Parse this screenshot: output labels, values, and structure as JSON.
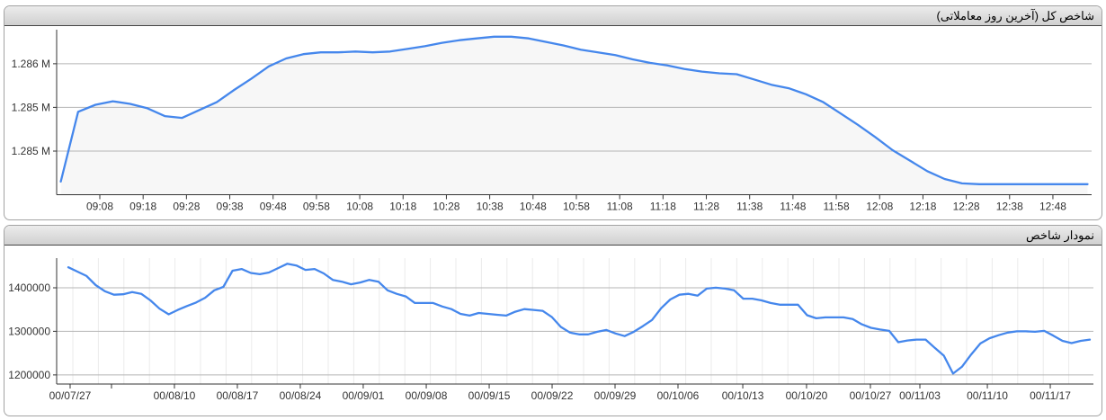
{
  "panels": {
    "intraday": {
      "title": "شاخص کل (آخرین روز معاملاتی)"
    },
    "history": {
      "title": "نمودار شاخص"
    }
  },
  "colors": {
    "line": "#4587ec",
    "area_fill": "#f7f7f7",
    "grid": "#b5b5b5",
    "minor_grid": "#ebebeb",
    "axis": "#333333",
    "tick_label": "#333333",
    "header_border": "#454545"
  },
  "chart_data": [
    {
      "id": "intraday",
      "type": "area",
      "title": "شاخص کل (آخرین روز معاملاتی)",
      "x": [
        "08:59",
        "09:03",
        "09:07",
        "09:11",
        "09:15",
        "09:19",
        "09:23",
        "09:27",
        "09:31",
        "09:35",
        "09:39",
        "09:43",
        "09:47",
        "09:51",
        "09:55",
        "09:59",
        "10:03",
        "10:07",
        "10:11",
        "10:15",
        "10:19",
        "10:23",
        "10:27",
        "10:31",
        "10:35",
        "10:39",
        "10:43",
        "10:47",
        "10:51",
        "10:55",
        "10:59",
        "11:03",
        "11:07",
        "11:11",
        "11:15",
        "11:19",
        "11:23",
        "11:27",
        "11:31",
        "11:35",
        "11:39",
        "11:43",
        "11:47",
        "11:51",
        "11:55",
        "11:59",
        "12:03",
        "12:07",
        "12:11",
        "12:15",
        "12:19",
        "12:23",
        "12:27",
        "12:31",
        "12:35",
        "12:39",
        "12:43",
        "12:47",
        "12:51",
        "12:56"
      ],
      "values": [
        1284650,
        1285450,
        1285530,
        1285570,
        1285540,
        1285490,
        1285400,
        1285380,
        1285470,
        1285560,
        1285700,
        1285830,
        1285970,
        1286060,
        1286110,
        1286130,
        1286130,
        1286140,
        1286130,
        1286140,
        1286170,
        1286200,
        1286240,
        1286270,
        1286290,
        1286310,
        1286310,
        1286290,
        1286250,
        1286210,
        1286160,
        1286130,
        1286100,
        1286050,
        1286010,
        1285980,
        1285940,
        1285910,
        1285890,
        1285880,
        1285820,
        1285760,
        1285720,
        1285650,
        1285560,
        1285430,
        1285300,
        1285160,
        1285010,
        1284890,
        1284770,
        1284680,
        1284630,
        1284620,
        1284620,
        1284620,
        1284620,
        1284620,
        1284620,
        1284620
      ],
      "x_tick_labels": [
        "09:08",
        "09:18",
        "09:28",
        "09:38",
        "09:48",
        "09:58",
        "10:08",
        "10:18",
        "10:28",
        "10:38",
        "10:48",
        "10:58",
        "11:08",
        "11:18",
        "11:28",
        "11:38",
        "11:48",
        "11:58",
        "12:08",
        "12:18",
        "12:28",
        "12:38",
        "12:48"
      ],
      "y_tick_labels": [
        "1.286 M",
        "1.285 M",
        "1.285 M"
      ],
      "y_tick_values": [
        1286000,
        1285500,
        1285000
      ],
      "ylim": [
        1284500,
        1286390
      ],
      "grid": "horizontal",
      "legend": "none"
    },
    {
      "id": "history",
      "type": "line",
      "title": "نمودار شاخص",
      "values": [
        1447000,
        1437000,
        1427000,
        1406000,
        1392000,
        1384000,
        1385000,
        1390000,
        1386000,
        1371000,
        1352000,
        1339000,
        1349000,
        1358000,
        1366000,
        1377000,
        1394000,
        1402000,
        1439000,
        1443000,
        1434000,
        1431000,
        1435000,
        1445000,
        1455000,
        1451000,
        1441000,
        1443000,
        1433000,
        1418000,
        1414000,
        1408000,
        1412000,
        1418000,
        1414000,
        1394000,
        1386000,
        1380000,
        1365000,
        1365000,
        1365000,
        1357000,
        1351000,
        1340000,
        1336000,
        1342000,
        1340000,
        1338000,
        1336000,
        1345000,
        1351000,
        1349000,
        1347000,
        1333000,
        1310000,
        1297000,
        1293000,
        1293000,
        1299000,
        1303000,
        1295000,
        1289000,
        1299000,
        1312000,
        1326000,
        1353000,
        1373000,
        1384000,
        1386000,
        1382000,
        1398000,
        1400000,
        1398000,
        1394000,
        1375000,
        1375000,
        1371000,
        1365000,
        1361000,
        1361000,
        1361000,
        1337000,
        1330000,
        1332000,
        1332000,
        1332000,
        1328000,
        1316000,
        1308000,
        1304000,
        1301000,
        1275000,
        1279000,
        1281000,
        1281000,
        1262000,
        1244000,
        1203000,
        1219000,
        1247000,
        1272000,
        1284000,
        1291000,
        1297000,
        1300000,
        1300000,
        1299000,
        1301000,
        1290000,
        1278000,
        1273000,
        1278000,
        1281000
      ],
      "x_ticks": [
        {
          "label": "00/07/27",
          "pos": 0.013
        },
        {
          "label": "",
          "pos": 0.0529
        },
        {
          "label": "00/08/10",
          "pos": 0.1136
        },
        {
          "label": "00/08/17",
          "pos": 0.1743
        },
        {
          "label": "00/08/24",
          "pos": 0.235
        },
        {
          "label": "00/09/01",
          "pos": 0.2957
        },
        {
          "label": "00/09/08",
          "pos": 0.3565
        },
        {
          "label": "00/09/15",
          "pos": 0.4172
        },
        {
          "label": "00/09/22",
          "pos": 0.4779
        },
        {
          "label": "00/09/29",
          "pos": 0.5386
        },
        {
          "label": "00/10/06",
          "pos": 0.5993
        },
        {
          "label": "00/10/13",
          "pos": 0.6618
        },
        {
          "label": "00/10/20",
          "pos": 0.7233
        },
        {
          "label": "00/10/27",
          "pos": 0.7849
        },
        {
          "label": "00/11/03",
          "pos": 0.8326
        },
        {
          "label": "00/11/10",
          "pos": 0.8977
        },
        {
          "label": "00/11/17",
          "pos": 0.9584
        }
      ],
      "y_tick_labels": [
        "1400000",
        "1300000",
        "1200000"
      ],
      "y_tick_values": [
        1400000,
        1300000,
        1200000
      ],
      "ylim": [
        1179000,
        1468000
      ],
      "grid": "horizontal+vertical",
      "legend": "none"
    }
  ]
}
